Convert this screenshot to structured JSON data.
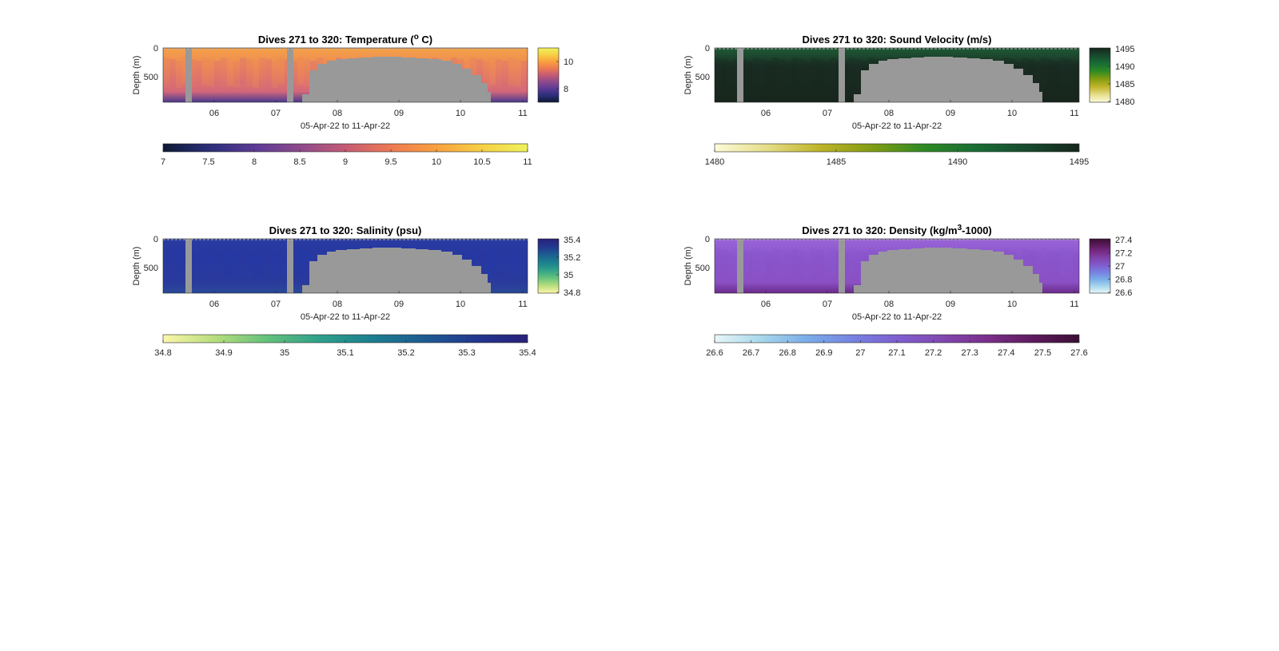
{
  "chart_data": [
    {
      "type": "heatmap",
      "title_text": "Dives 271 to 320: Temperature (",
      "title_sup": "o",
      "title_after": " C)",
      "ylabel": "Depth (m)",
      "xlabel": "05-Apr-22 to 11-Apr-22",
      "xticks": [
        "06",
        "07",
        "08",
        "09",
        "10",
        "11"
      ],
      "yticks": [
        "0",
        "500"
      ],
      "side_colorbar_ticks": [
        "10",
        "8"
      ],
      "bottom_colorbar_ticks": [
        "7",
        "7.5",
        "8",
        "8.5",
        "9",
        "9.5",
        "10",
        "10.5",
        "11"
      ],
      "colormap": [
        "#0d1a33",
        "#2b2e7a",
        "#5b3a95",
        "#8e4a8c",
        "#c55a74",
        "#ed7a52",
        "#f9a13f",
        "#f7d044",
        "#eef25c"
      ],
      "value_range": [
        7,
        11
      ],
      "no_data_color": "#999999",
      "profile": {
        "surface_color": "#f4a047",
        "mid_color": "#ee8a55",
        "deep_color": "#d4677a",
        "bottom_color": "#4a3a8f"
      }
    },
    {
      "type": "heatmap",
      "title_text": "Dives 271 to 320: Sound Velocity (m/s)",
      "title_sup": "",
      "title_after": "",
      "ylabel": "Depth (m)",
      "xlabel": "05-Apr-22 to 11-Apr-22",
      "xticks": [
        "06",
        "07",
        "08",
        "09",
        "10",
        "11"
      ],
      "yticks": [
        "0",
        "500"
      ],
      "side_colorbar_ticks": [
        "1495",
        "1490",
        "1485",
        "1480"
      ],
      "bottom_colorbar_ticks": [
        "1480",
        "1485",
        "1490",
        "1495"
      ],
      "colormap": [
        "#fdfbd8",
        "#e6dd8a",
        "#bfb429",
        "#839d12",
        "#2f8a23",
        "#196d34",
        "#174a2e",
        "#16261c"
      ],
      "value_range": [
        1480,
        1495
      ],
      "no_data_color": "#999999",
      "profile": {
        "surface_color": "#1e5a36",
        "mid_color": "#1a2c22",
        "deep_color": "#18281f",
        "bottom_color": "#16261c"
      }
    },
    {
      "type": "heatmap",
      "title_text": "Dives 271 to 320: Salinity (psu)",
      "title_sup": "",
      "title_after": "",
      "ylabel": "Depth (m)",
      "xlabel": "05-Apr-22 to 11-Apr-22",
      "xticks": [
        "06",
        "07",
        "08",
        "09",
        "10",
        "11"
      ],
      "yticks": [
        "0",
        "500"
      ],
      "side_colorbar_ticks": [
        "35.4",
        "35.2",
        "35",
        "34.8"
      ],
      "bottom_colorbar_ticks": [
        "34.8",
        "34.9",
        "35",
        "35.1",
        "35.2",
        "35.3",
        "35.4"
      ],
      "colormap": [
        "#fdf6a8",
        "#b6dd7d",
        "#63c17c",
        "#2fa08a",
        "#1b7f8f",
        "#1d5c91",
        "#22378f",
        "#29207a"
      ],
      "value_range": [
        34.8,
        35.4
      ],
      "no_data_color": "#999999",
      "profile": {
        "surface_color": "#2a3aa0",
        "mid_color": "#2638a4",
        "deep_color": "#2a3a9c",
        "bottom_color": "#2a4a98"
      }
    },
    {
      "type": "heatmap",
      "title_text": "Dives 271 to 320: Density (kg/m",
      "title_sup": "3",
      "title_after": "-1000)",
      "ylabel": "Depth (m)",
      "xlabel": "05-Apr-22 to 11-Apr-22",
      "xticks": [
        "06",
        "07",
        "08",
        "09",
        "10",
        "11"
      ],
      "yticks": [
        "0",
        "500"
      ],
      "side_colorbar_ticks": [
        "27.4",
        "27.2",
        "27",
        "26.8",
        "26.6"
      ],
      "bottom_colorbar_ticks": [
        "26.6",
        "26.7",
        "26.8",
        "26.9",
        "27",
        "27.1",
        "27.2",
        "27.3",
        "27.4",
        "27.5",
        "27.6"
      ],
      "colormap": [
        "#e9f6f7",
        "#a8d8ec",
        "#7aaee8",
        "#7684e2",
        "#7f5fd0",
        "#8048b0",
        "#7a2e8a",
        "#5e1a5e",
        "#3a0f33"
      ],
      "value_range": [
        26.6,
        27.6
      ],
      "no_data_color": "#999999",
      "profile": {
        "surface_color": "#9a64d8",
        "mid_color": "#8a56cc",
        "deep_color": "#8a50c4",
        "bottom_color": "#6a2a8a"
      }
    }
  ]
}
